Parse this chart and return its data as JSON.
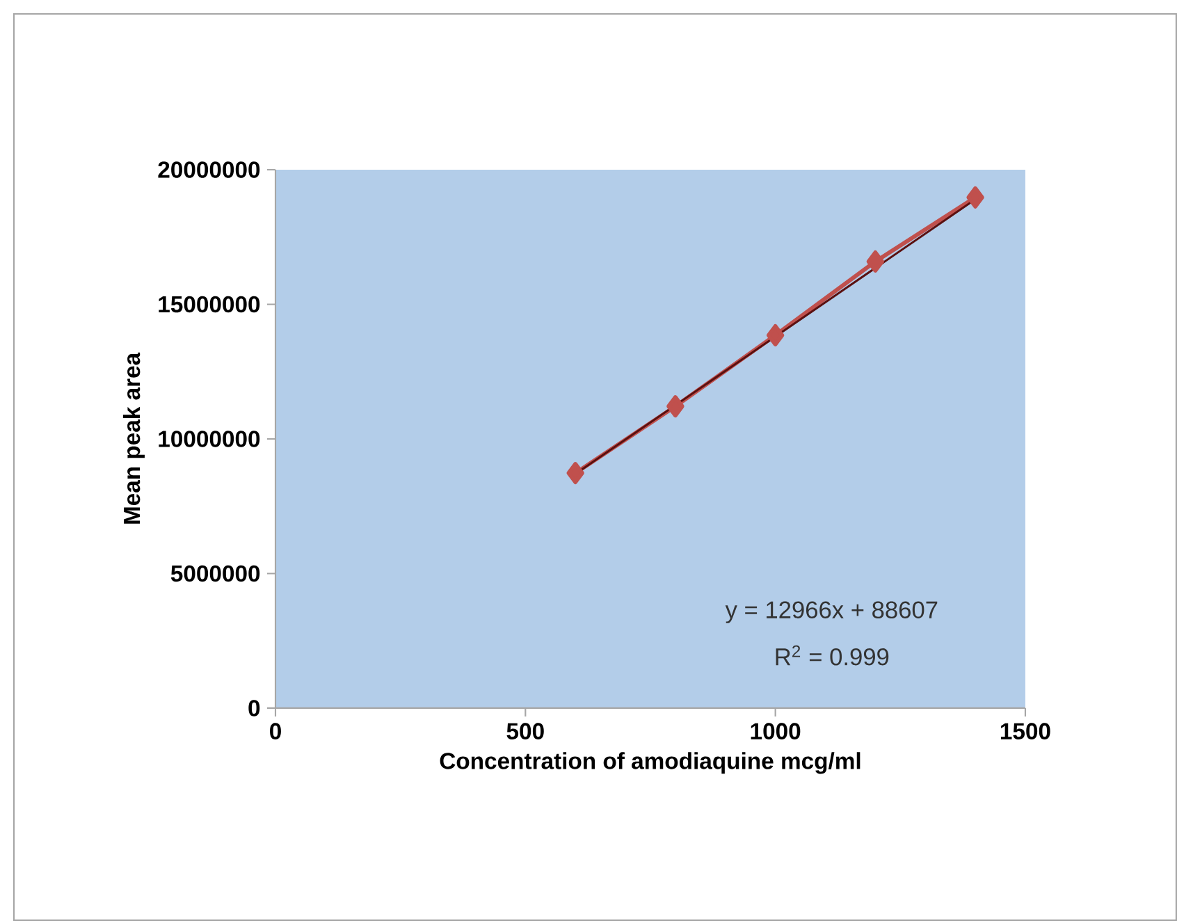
{
  "chart_data": {
    "type": "line",
    "xlabel": "Concentration of amodiaquine mcg/ml",
    "ylabel": "Mean peak area",
    "x": [
      600,
      800,
      1000,
      1200,
      1400
    ],
    "series": [
      {
        "type": "line",
        "color": "#c0504d",
        "marker": "diamond",
        "values": [
          8730000,
          11210000,
          13850000,
          16590000,
          18970000
        ]
      },
      {
        "type": "line",
        "color": "#5a1010",
        "marker": "none",
        "x": [
          600,
          1400
        ],
        "values": [
          8700000,
          18900000
        ]
      }
    ],
    "xlim": [
      0,
      1500
    ],
    "xticks": [
      0,
      500,
      1000,
      1500
    ],
    "ylim": [
      0,
      20000000
    ],
    "yticks": [
      0,
      5000000,
      10000000,
      15000000,
      20000000
    ],
    "annotations": [
      "y = 12966x + 88607",
      "R$^{2}$ = 0.999"
    ],
    "grid": false,
    "legend": false
  }
}
